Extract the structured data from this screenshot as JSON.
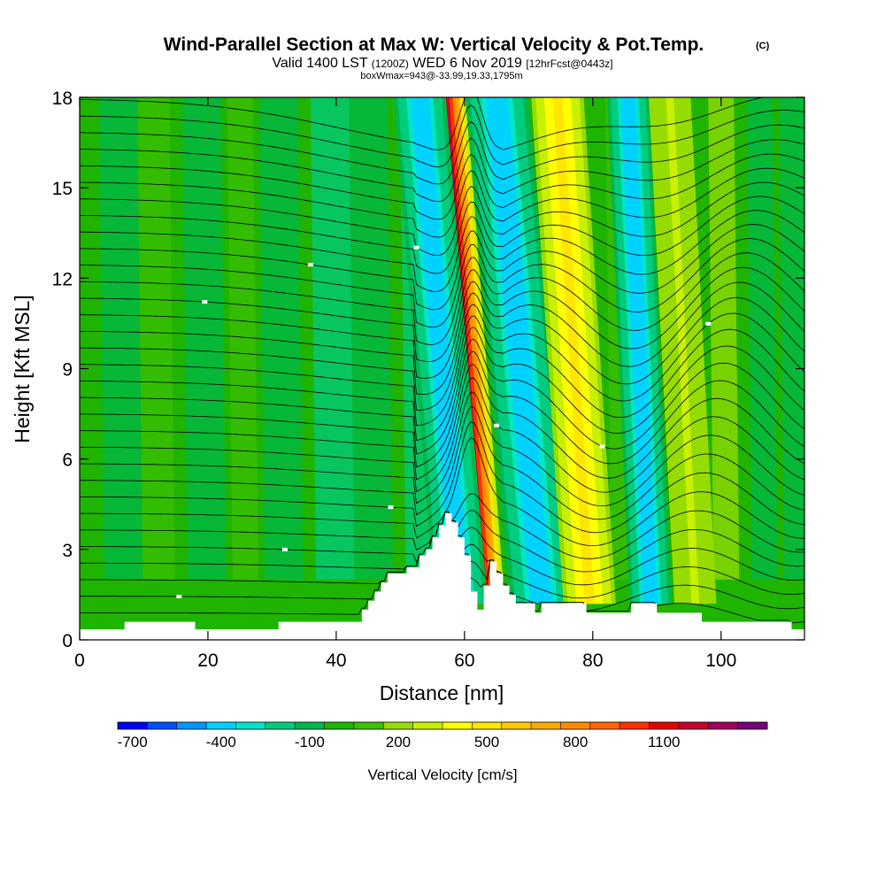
{
  "chart_data": {
    "type": "heatmap",
    "title": "Wind-Parallel Section at Max W: Vertical Velocity & Pot.Temp.",
    "copyright_mark": "(C)",
    "subtitle_left": "Valid 1400 LST",
    "subtitle_zulu": "(1200Z)",
    "subtitle_date": "WED 6 Nov 2019",
    "subtitle_fcst": "[12hrFcst@0443z]",
    "subtitle_box": "boxWmax=943@-33.99,19.33,1795m",
    "xlabel": "Distance [nm]",
    "ylabel": "Height [Kft MSL]",
    "xlim": [
      0,
      113
    ],
    "ylim": [
      0,
      18
    ],
    "x_ticks": [
      0,
      20,
      40,
      60,
      80,
      100
    ],
    "y_ticks": [
      0,
      3,
      6,
      9,
      12,
      15,
      18
    ],
    "colorbar": {
      "label": "Vertical Velocity [cm/s]",
      "ticks": [
        "-700",
        "-400",
        "-100",
        "200",
        "500",
        "800",
        "1100"
      ],
      "tick_levels": [
        -700,
        -400,
        -100,
        200,
        500,
        800,
        1100
      ],
      "bins": [
        -800,
        -700,
        -600,
        -500,
        -400,
        -300,
        -200,
        -100,
        0,
        100,
        200,
        300,
        400,
        500,
        600,
        700,
        800,
        900,
        1000,
        1100,
        1200,
        1300,
        1400
      ],
      "colors": [
        "#0000ff",
        "#0050ff",
        "#0096ff",
        "#00d2ff",
        "#00e6c8",
        "#00cc80",
        "#00b84a",
        "#1fb400",
        "#3cc000",
        "#96dc00",
        "#c8f000",
        "#ffff00",
        "#ffe600",
        "#ffc800",
        "#ffaa00",
        "#ff8c00",
        "#ff6400",
        "#ff3200",
        "#e60000",
        "#c8002d",
        "#a0005a",
        "#780078"
      ]
    },
    "features": [
      {
        "kind": "updraft_core",
        "x_base": 63.0,
        "x_top": 57.0,
        "width_nm": 2.0,
        "w_cm_s": 1100
      },
      {
        "kind": "downdraft",
        "x_base": 59.5,
        "x_top": 53.0,
        "width_nm": 2.5,
        "w_cm_s": -500
      },
      {
        "kind": "downdraft",
        "x_base": 72.0,
        "x_top": 65.0,
        "width_nm": 3.0,
        "w_cm_s": -500
      },
      {
        "kind": "updraft",
        "x_base": 79.5,
        "x_top": 74.5,
        "width_nm": 2.5,
        "w_cm_s": 400
      },
      {
        "kind": "downdraft",
        "x_base": 89.0,
        "x_top": 85.5,
        "width_nm": 2.0,
        "w_cm_s": -500
      },
      {
        "kind": "updraft",
        "x_base": 96.0,
        "x_top": 92.0,
        "width_nm": 2.0,
        "w_cm_s": 200
      }
    ],
    "terrain_kft": [
      [
        0,
        0.35
      ],
      [
        7,
        0.35
      ],
      [
        7,
        0.6
      ],
      [
        18,
        0.6
      ],
      [
        18,
        0.35
      ],
      [
        31,
        0.35
      ],
      [
        31,
        0.6
      ],
      [
        44,
        0.6
      ],
      [
        44,
        1.0
      ],
      [
        45,
        1.0
      ],
      [
        45,
        1.3
      ],
      [
        46,
        1.3
      ],
      [
        46,
        1.6
      ],
      [
        47,
        1.6
      ],
      [
        47,
        1.9
      ],
      [
        48,
        1.9
      ],
      [
        48,
        2.2
      ],
      [
        51,
        2.2
      ],
      [
        51,
        2.4
      ],
      [
        53,
        2.4
      ],
      [
        53,
        2.8
      ],
      [
        54,
        2.8
      ],
      [
        54,
        3.0
      ],
      [
        55,
        3.0
      ],
      [
        55,
        3.4
      ],
      [
        56,
        3.4
      ],
      [
        56,
        3.8
      ],
      [
        57,
        3.8
      ],
      [
        57,
        4.2
      ],
      [
        58,
        4.2
      ],
      [
        58,
        3.9
      ],
      [
        59,
        3.9
      ],
      [
        59,
        3.4
      ],
      [
        60,
        3.4
      ],
      [
        60,
        2.8
      ],
      [
        61,
        2.8
      ],
      [
        61,
        1.6
      ],
      [
        62,
        1.6
      ],
      [
        62,
        1.0
      ],
      [
        63,
        1.0
      ],
      [
        63,
        1.8
      ],
      [
        64,
        1.8
      ],
      [
        64,
        2.6
      ],
      [
        65,
        2.6
      ],
      [
        65,
        2.2
      ],
      [
        66,
        2.2
      ],
      [
        66,
        1.8
      ],
      [
        67,
        1.8
      ],
      [
        67,
        1.5
      ],
      [
        68,
        1.5
      ],
      [
        68,
        1.2
      ],
      [
        71,
        1.2
      ],
      [
        71,
        0.9
      ],
      [
        72,
        0.9
      ],
      [
        72,
        1.2
      ],
      [
        79,
        1.2
      ],
      [
        79,
        0.9
      ],
      [
        86,
        0.9
      ],
      [
        86,
        1.2
      ],
      [
        90,
        1.2
      ],
      [
        90,
        0.9
      ],
      [
        97,
        0.9
      ],
      [
        97,
        0.6
      ],
      [
        99,
        0.6
      ],
      [
        99,
        0.6
      ],
      [
        111,
        0.6
      ],
      [
        111,
        0.35
      ],
      [
        113,
        0.35
      ]
    ]
  }
}
